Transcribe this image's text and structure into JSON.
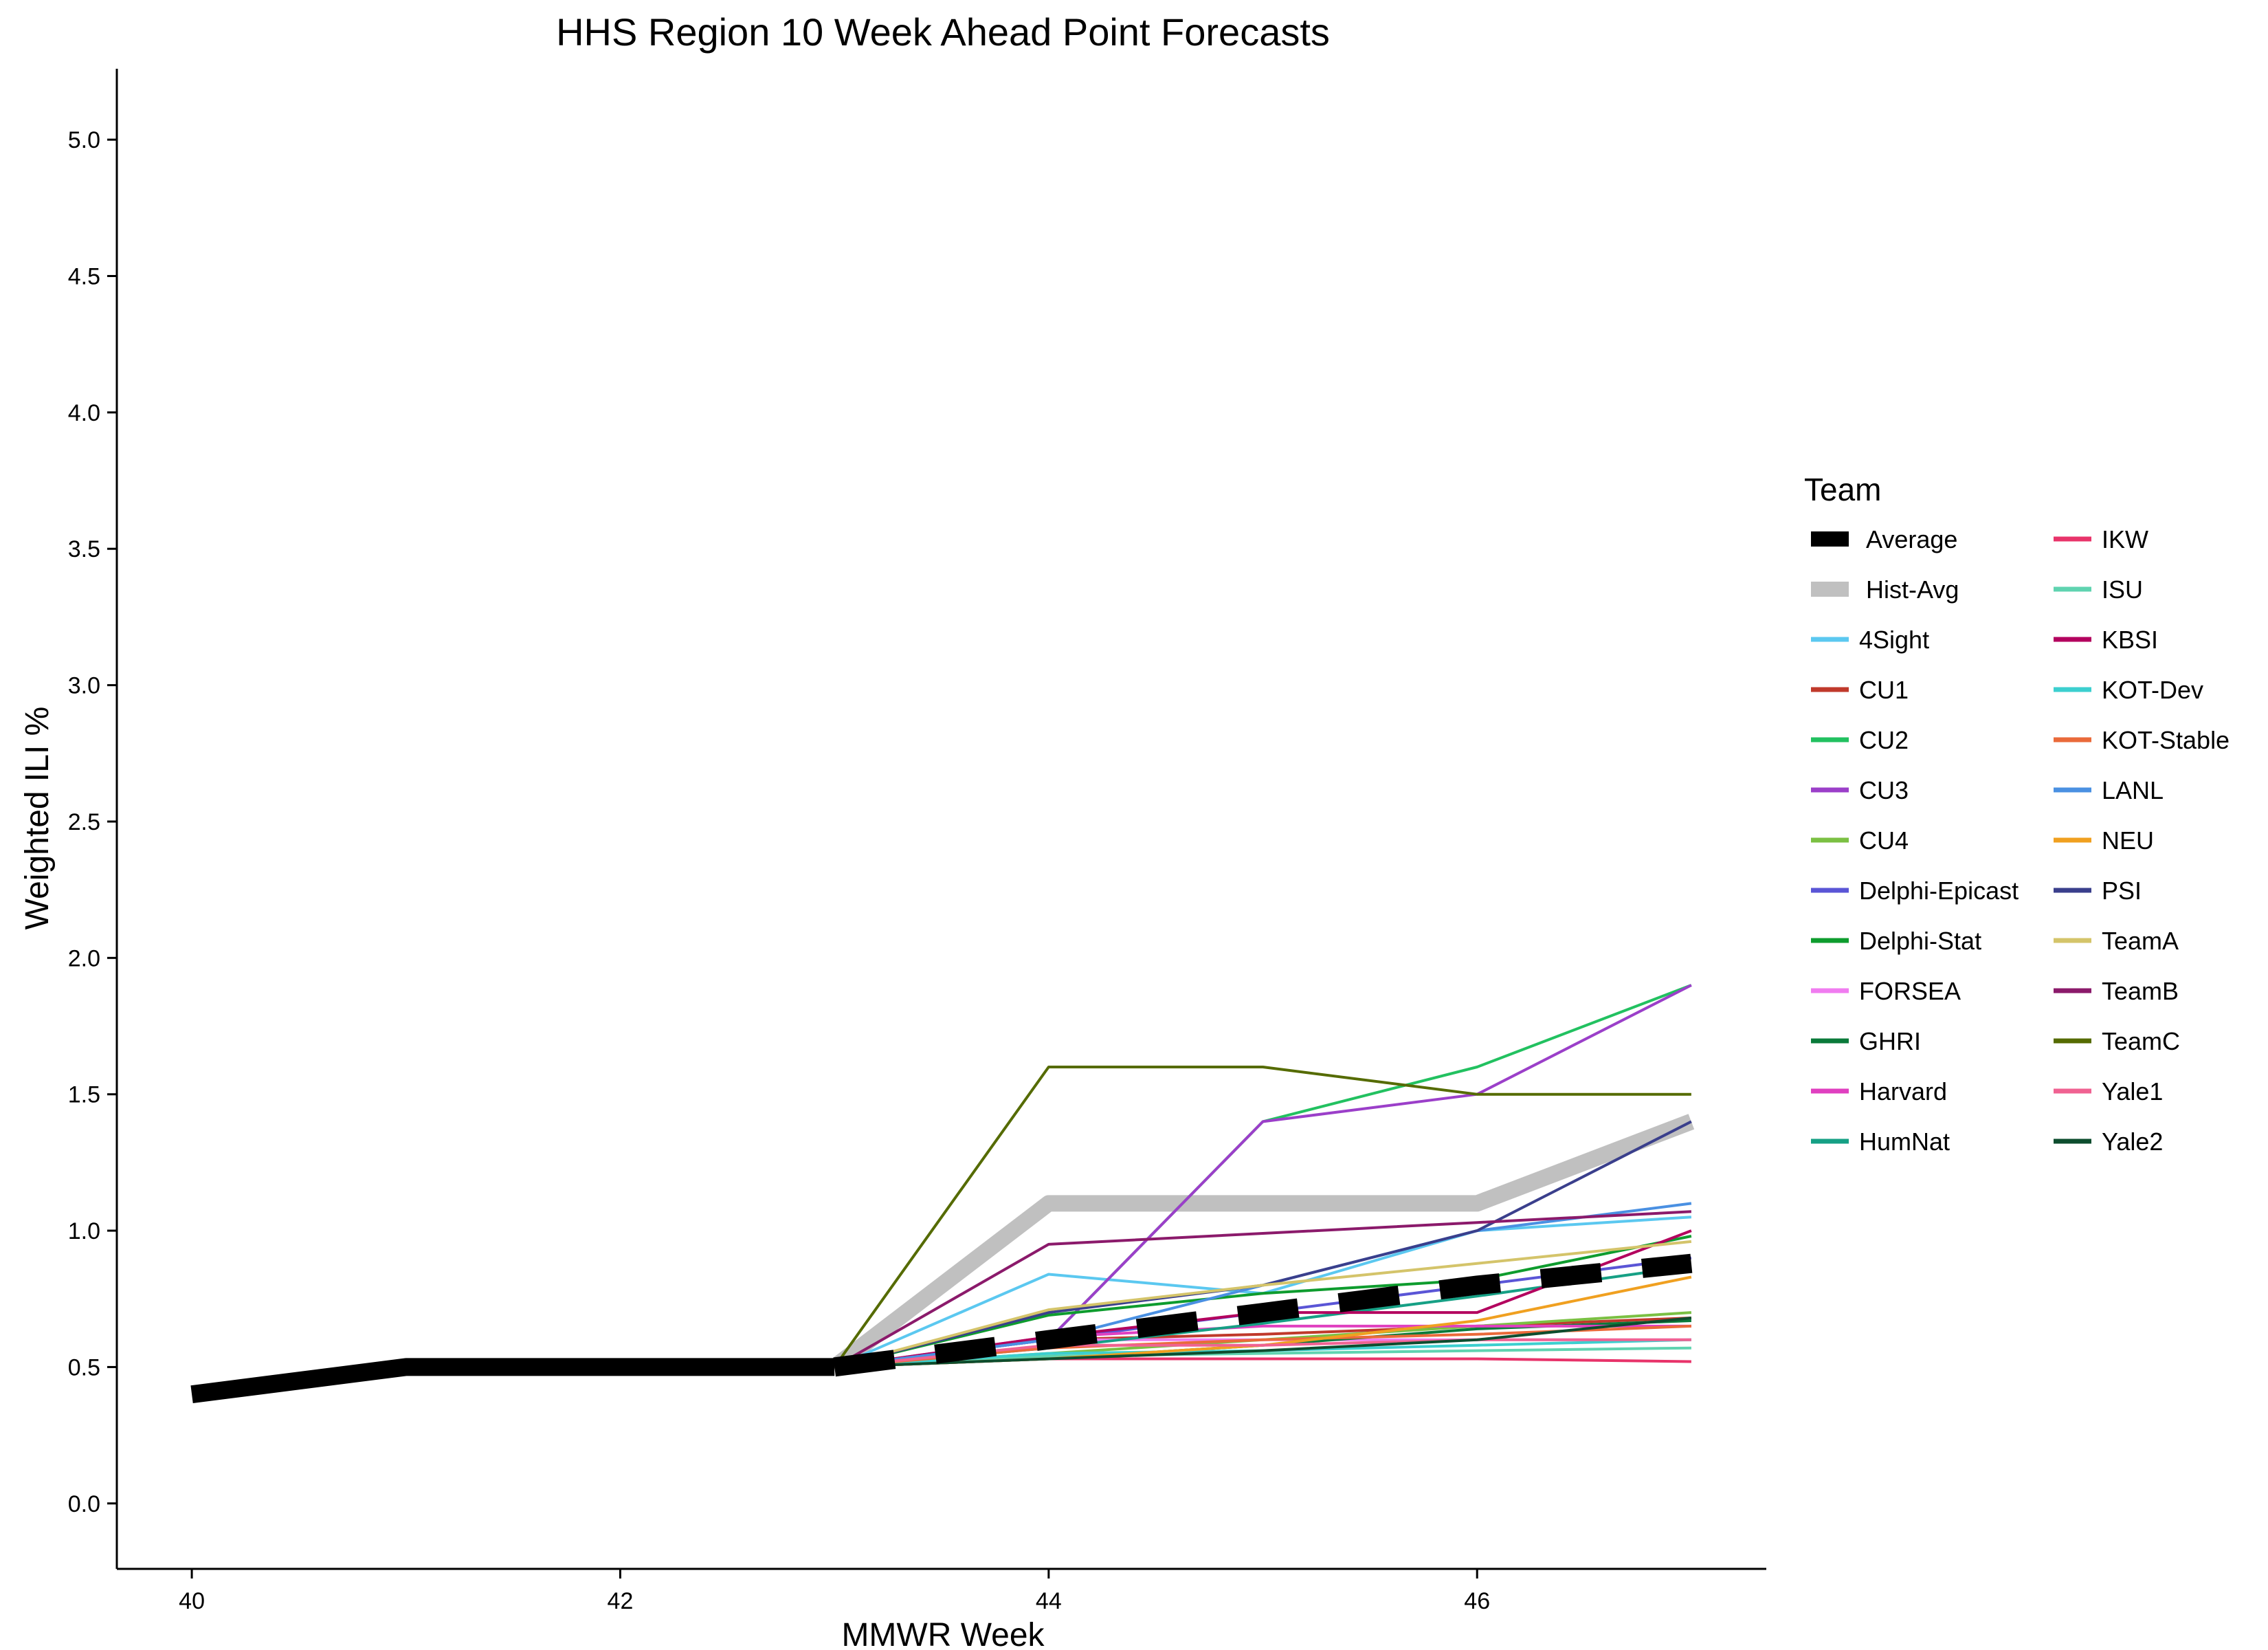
{
  "chart_data": {
    "type": "line",
    "title": "HHS Region 10 Week Ahead Point Forecasts",
    "xlabel": "MMWR Week",
    "ylabel": "Weighted ILI %",
    "xlim": [
      39.65,
      47.35
    ],
    "ylim": [
      -0.24,
      5.26
    ],
    "x_ticks": [
      40,
      42,
      44,
      46
    ],
    "y_ticks": [
      0.0,
      0.5,
      1.0,
      1.5,
      2.0,
      2.5,
      3.0,
      3.5,
      4.0,
      4.5,
      5.0
    ],
    "x_tick_labels": [
      "40",
      "42",
      "44",
      "46"
    ],
    "y_tick_labels": [
      "0.0",
      "0.5",
      "1.0",
      "1.5",
      "2.0",
      "2.5",
      "3.0",
      "3.5",
      "4.0",
      "4.5",
      "5.0"
    ],
    "grid": false,
    "legend": {
      "title": "Team",
      "position": "right",
      "columns": 2
    },
    "observed": {
      "x": [
        40,
        41,
        42,
        43
      ],
      "y": [
        0.4,
        0.5,
        0.5,
        0.5
      ],
      "color": "#000000"
    },
    "series": [
      {
        "name": "Average",
        "color": "#000000",
        "style": "dashed-thick",
        "x": [
          43,
          44,
          45,
          46,
          47
        ],
        "y": [
          0.5,
          0.6,
          0.7,
          0.8,
          0.88
        ]
      },
      {
        "name": "Hist-Avg",
        "color": "#c0c0c0",
        "style": "thick",
        "x": [
          43,
          44,
          45,
          46,
          47
        ],
        "y": [
          0.5,
          1.1,
          1.1,
          1.1,
          1.4
        ]
      },
      {
        "name": "4Sight",
        "color": "#5bc8f0",
        "x": [
          43,
          44,
          45,
          46,
          47
        ],
        "y": [
          0.5,
          0.84,
          0.77,
          1.0,
          1.05
        ]
      },
      {
        "name": "CU1",
        "color": "#c0392b",
        "x": [
          43,
          44,
          45,
          46,
          47
        ],
        "y": [
          0.5,
          0.6,
          0.62,
          0.65,
          0.68
        ]
      },
      {
        "name": "CU2",
        "color": "#22c160",
        "x": [
          43,
          44,
          45,
          46,
          47
        ],
        "y": [
          0.5,
          0.6,
          1.4,
          1.6,
          1.9
        ]
      },
      {
        "name": "CU3",
        "color": "#9b3fc9",
        "x": [
          43,
          44,
          45,
          46,
          47
        ],
        "y": [
          0.5,
          0.6,
          1.4,
          1.5,
          1.9
        ]
      },
      {
        "name": "CU4",
        "color": "#7bc043",
        "x": [
          43,
          44,
          45,
          46,
          47
        ],
        "y": [
          0.5,
          0.55,
          0.6,
          0.65,
          0.7
        ]
      },
      {
        "name": "Delphi-Epicast",
        "color": "#5a55d6",
        "x": [
          43,
          44,
          45,
          46,
          47
        ],
        "y": [
          0.5,
          0.6,
          0.7,
          0.8,
          0.9
        ]
      },
      {
        "name": "Delphi-Stat",
        "color": "#0e9c2e",
        "x": [
          43,
          44,
          45,
          46,
          47
        ],
        "y": [
          0.5,
          0.69,
          0.77,
          0.82,
          0.98
        ]
      },
      {
        "name": "FORSEA",
        "color": "#f07cf0",
        "x": [
          43,
          44,
          45,
          46,
          47
        ],
        "y": [
          0.5,
          0.6,
          0.6,
          0.6,
          0.6
        ]
      },
      {
        "name": "GHRI",
        "color": "#0a7a3a",
        "x": [
          43,
          44,
          45,
          46,
          47
        ],
        "y": [
          0.5,
          0.53,
          0.58,
          0.64,
          0.67
        ]
      },
      {
        "name": "Harvard",
        "color": "#e040c0",
        "x": [
          43,
          44,
          45,
          46,
          47
        ],
        "y": [
          0.5,
          0.61,
          0.65,
          0.65,
          0.65
        ]
      },
      {
        "name": "HumNat",
        "color": "#16a085",
        "x": [
          43,
          44,
          45,
          46,
          47
        ],
        "y": [
          0.5,
          0.57,
          0.66,
          0.76,
          0.87
        ]
      },
      {
        "name": "IKW",
        "color": "#e8336a",
        "x": [
          43,
          44,
          45,
          46,
          47
        ],
        "y": [
          0.5,
          0.53,
          0.53,
          0.53,
          0.52
        ]
      },
      {
        "name": "ISU",
        "color": "#5fd3b0",
        "x": [
          43,
          44,
          45,
          46,
          47
        ],
        "y": [
          0.5,
          0.54,
          0.55,
          0.56,
          0.57
        ]
      },
      {
        "name": "KBSI",
        "color": "#b3005e",
        "x": [
          43,
          44,
          45,
          46,
          47
        ],
        "y": [
          0.5,
          0.61,
          0.7,
          0.7,
          1.0
        ]
      },
      {
        "name": "KOT-Dev",
        "color": "#3ccfcf",
        "x": [
          43,
          44,
          45,
          46,
          47
        ],
        "y": [
          0.5,
          0.55,
          0.56,
          0.58,
          0.6
        ]
      },
      {
        "name": "KOT-Stable",
        "color": "#ea6a3a",
        "x": [
          43,
          44,
          45,
          46,
          47
        ],
        "y": [
          0.5,
          0.57,
          0.6,
          0.62,
          0.65
        ]
      },
      {
        "name": "LANL",
        "color": "#4a90e2",
        "x": [
          43,
          44,
          45,
          46,
          47
        ],
        "y": [
          0.5,
          0.6,
          0.8,
          1.0,
          1.1
        ]
      },
      {
        "name": "NEU",
        "color": "#f0a020",
        "x": [
          43,
          44,
          45,
          46,
          47
        ],
        "y": [
          0.5,
          0.53,
          0.58,
          0.67,
          0.83
        ]
      },
      {
        "name": "PSI",
        "color": "#3a3f8c",
        "x": [
          43,
          44,
          45,
          46,
          47
        ],
        "y": [
          0.5,
          0.7,
          0.8,
          1.0,
          1.4
        ]
      },
      {
        "name": "TeamA",
        "color": "#d4c46a",
        "x": [
          43,
          44,
          45,
          46,
          47
        ],
        "y": [
          0.5,
          0.71,
          0.8,
          0.88,
          0.96
        ]
      },
      {
        "name": "TeamB",
        "color": "#8b1a6b",
        "x": [
          43,
          44,
          45,
          46,
          47
        ],
        "y": [
          0.5,
          0.95,
          0.99,
          1.03,
          1.07
        ]
      },
      {
        "name": "TeamC",
        "color": "#556b00",
        "x": [
          43,
          44,
          45,
          46,
          47
        ],
        "y": [
          0.5,
          1.6,
          1.6,
          1.5,
          1.5
        ]
      },
      {
        "name": "Yale1",
        "color": "#f06292",
        "x": [
          43,
          44,
          45,
          46,
          47
        ],
        "y": [
          0.5,
          0.58,
          0.58,
          0.6,
          0.6
        ]
      },
      {
        "name": "Yale2",
        "color": "#0d4d2e",
        "x": [
          43,
          44,
          45,
          46,
          47
        ],
        "y": [
          0.5,
          0.53,
          0.56,
          0.6,
          0.68
        ]
      }
    ]
  }
}
